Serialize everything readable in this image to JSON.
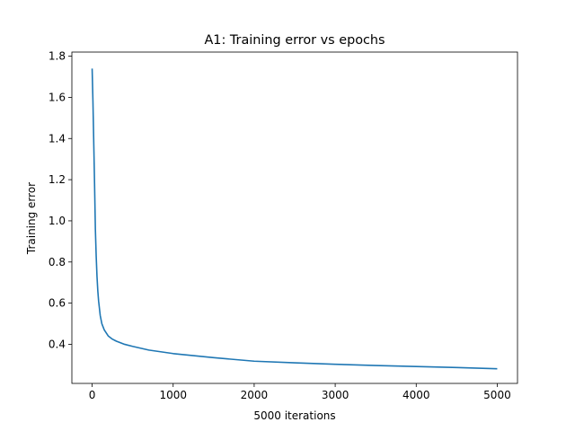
{
  "chart_data": {
    "type": "line",
    "title": "A1: Training error vs epochs",
    "xlabel": "5000 iterations",
    "ylabel": "Training error",
    "xlim": [
      -250,
      5250
    ],
    "ylim": [
      0.21,
      1.82
    ],
    "xticks": [
      0,
      1000,
      2000,
      3000,
      4000,
      5000
    ],
    "xtick_labels": [
      "0",
      "1000",
      "2000",
      "3000",
      "4000",
      "5000"
    ],
    "yticks": [
      0.4,
      0.6,
      0.8,
      1.0,
      1.2,
      1.4,
      1.6,
      1.8
    ],
    "ytick_labels": [
      "0.4",
      "0.6",
      "0.8",
      "1.0",
      "1.2",
      "1.4",
      "1.6",
      "1.8"
    ],
    "grid": false,
    "series": [
      {
        "color": "#1f77b4",
        "x": [
          0,
          10,
          20,
          30,
          40,
          50,
          60,
          70,
          80,
          90,
          100,
          120,
          150,
          200,
          250,
          300,
          400,
          500,
          700,
          1000,
          1500,
          2000,
          2500,
          3000,
          3500,
          4000,
          4500,
          5000
        ],
        "y": [
          1.74,
          1.58,
          1.38,
          1.18,
          0.96,
          0.83,
          0.73,
          0.66,
          0.61,
          0.575,
          0.54,
          0.5,
          0.47,
          0.44,
          0.425,
          0.415,
          0.4,
          0.39,
          0.372,
          0.355,
          0.335,
          0.318,
          0.31,
          0.303,
          0.297,
          0.292,
          0.287,
          0.281
        ]
      }
    ]
  }
}
